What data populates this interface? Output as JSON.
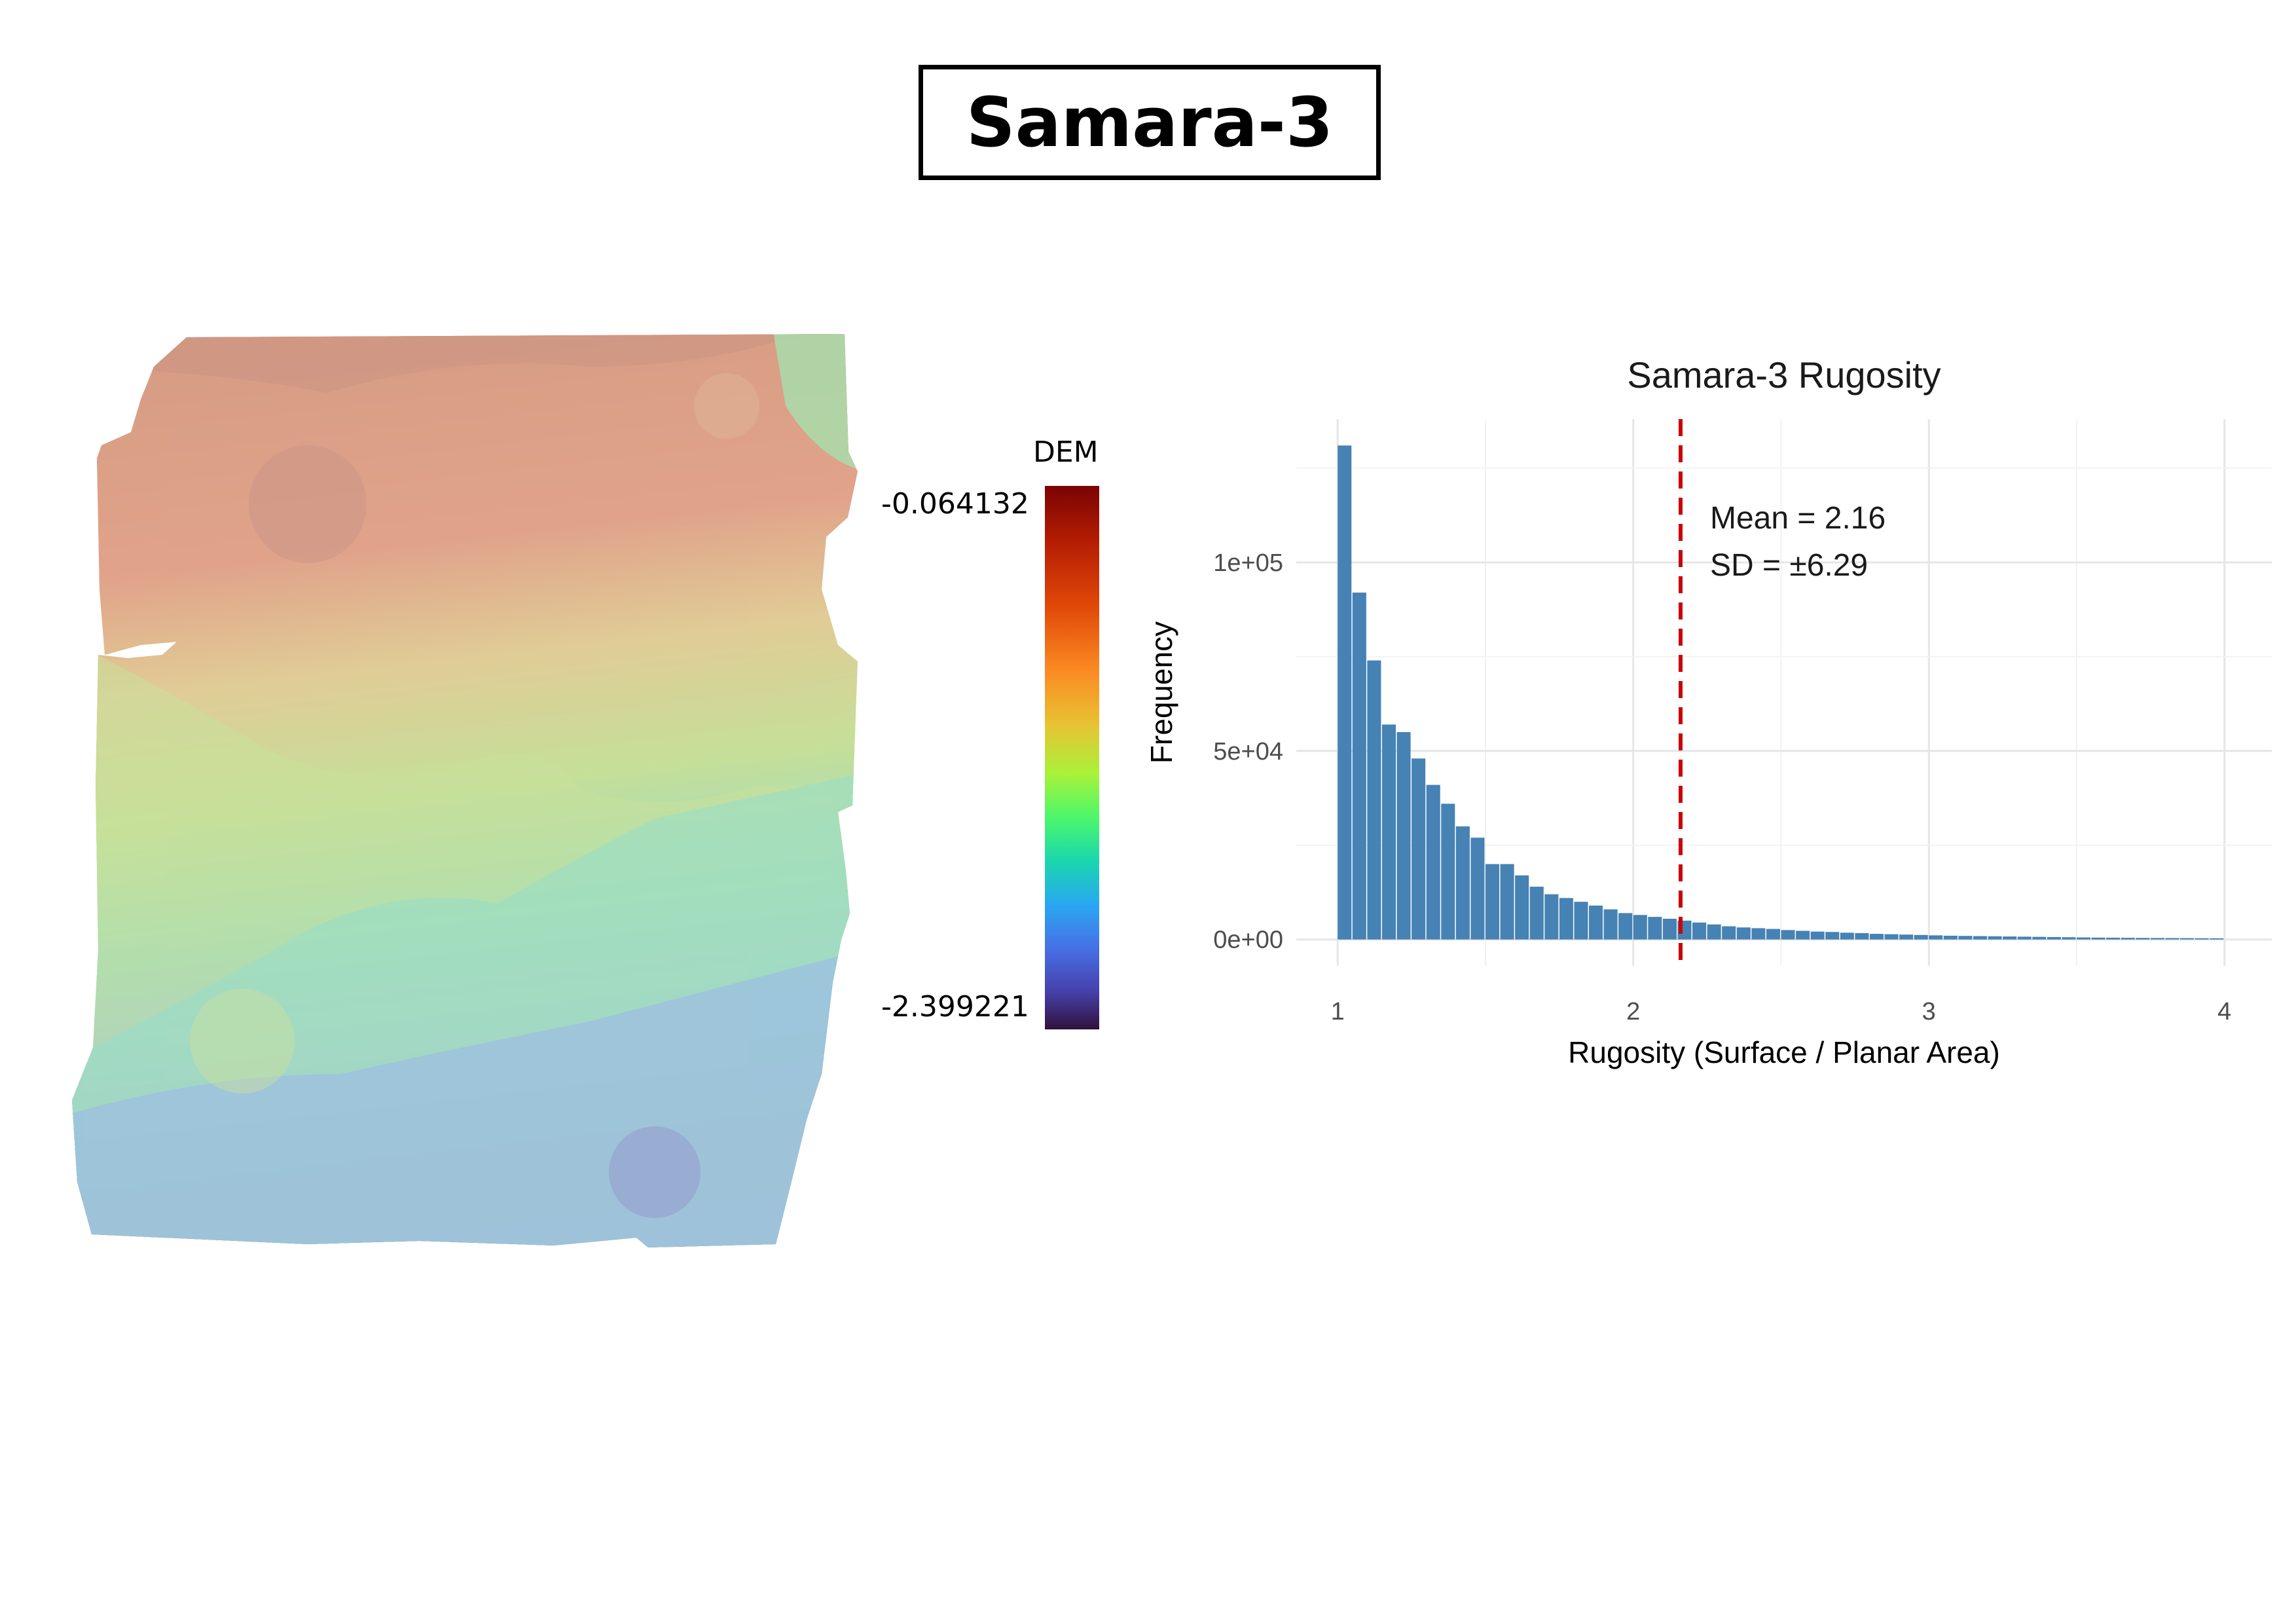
{
  "page_title": "Samara-3",
  "dem_legend": {
    "title": "DEM",
    "max_label": "-0.064132",
    "min_label": "-2.399221",
    "colormap": "turbo",
    "colors": [
      "#7a0403",
      "#e04808",
      "#e7c333",
      "#4cf76b",
      "#29a8f1",
      "#30123b"
    ]
  },
  "chart_data": {
    "type": "bar",
    "title": "Samara-3 Rugosity",
    "xlabel": "Rugosity (Surface / Planar Area)",
    "ylabel": "Frequency",
    "xlim": [
      0.86,
      4.16
    ],
    "ylim": [
      -7000,
      138000
    ],
    "x_ticks": [
      1,
      2,
      3,
      4
    ],
    "x_tick_labels": [
      "1",
      "2",
      "3",
      "4"
    ],
    "y_ticks": [
      0,
      50000,
      100000
    ],
    "y_tick_labels": [
      "0e+00",
      "5e+04",
      "1e+05"
    ],
    "bar_color": "#4682b4",
    "bin_width": 0.05,
    "bin_starts": [
      1.0,
      1.05,
      1.1,
      1.15,
      1.2,
      1.25,
      1.3,
      1.35,
      1.4,
      1.45,
      1.5,
      1.55,
      1.6,
      1.65,
      1.7,
      1.75,
      1.8,
      1.85,
      1.9,
      1.95,
      2.0,
      2.05,
      2.1,
      2.15,
      2.2,
      2.25,
      2.3,
      2.35,
      2.4,
      2.45,
      2.5,
      2.55,
      2.6,
      2.65,
      2.7,
      2.75,
      2.8,
      2.85,
      2.9,
      2.95,
      3.0,
      3.05,
      3.1,
      3.15,
      3.2,
      3.25,
      3.3,
      3.35,
      3.4,
      3.45,
      3.5,
      3.55,
      3.6,
      3.65,
      3.7,
      3.75,
      3.8,
      3.85,
      3.9,
      3.95
    ],
    "values": [
      131000,
      92000,
      74000,
      57000,
      55000,
      48000,
      41000,
      36000,
      30000,
      27000,
      20000,
      20000,
      17000,
      14000,
      12000,
      11000,
      10000,
      9000,
      8000,
      7000,
      6500,
      6000,
      5500,
      5000,
      4500,
      4000,
      3500,
      3200,
      3000,
      2800,
      2500,
      2300,
      2100,
      2000,
      1800,
      1700,
      1500,
      1400,
      1300,
      1200,
      1100,
      1000,
      950,
      900,
      850,
      800,
      750,
      700,
      650,
      600,
      550,
      500,
      480,
      450,
      420,
      400,
      380,
      360,
      340,
      320
    ],
    "mean_line": {
      "x": 2.16,
      "color": "#cc0000",
      "style": "dashed"
    },
    "annotations": {
      "mean": "Mean = 2.16",
      "sd": "SD = ±6.29"
    },
    "grid": true
  }
}
